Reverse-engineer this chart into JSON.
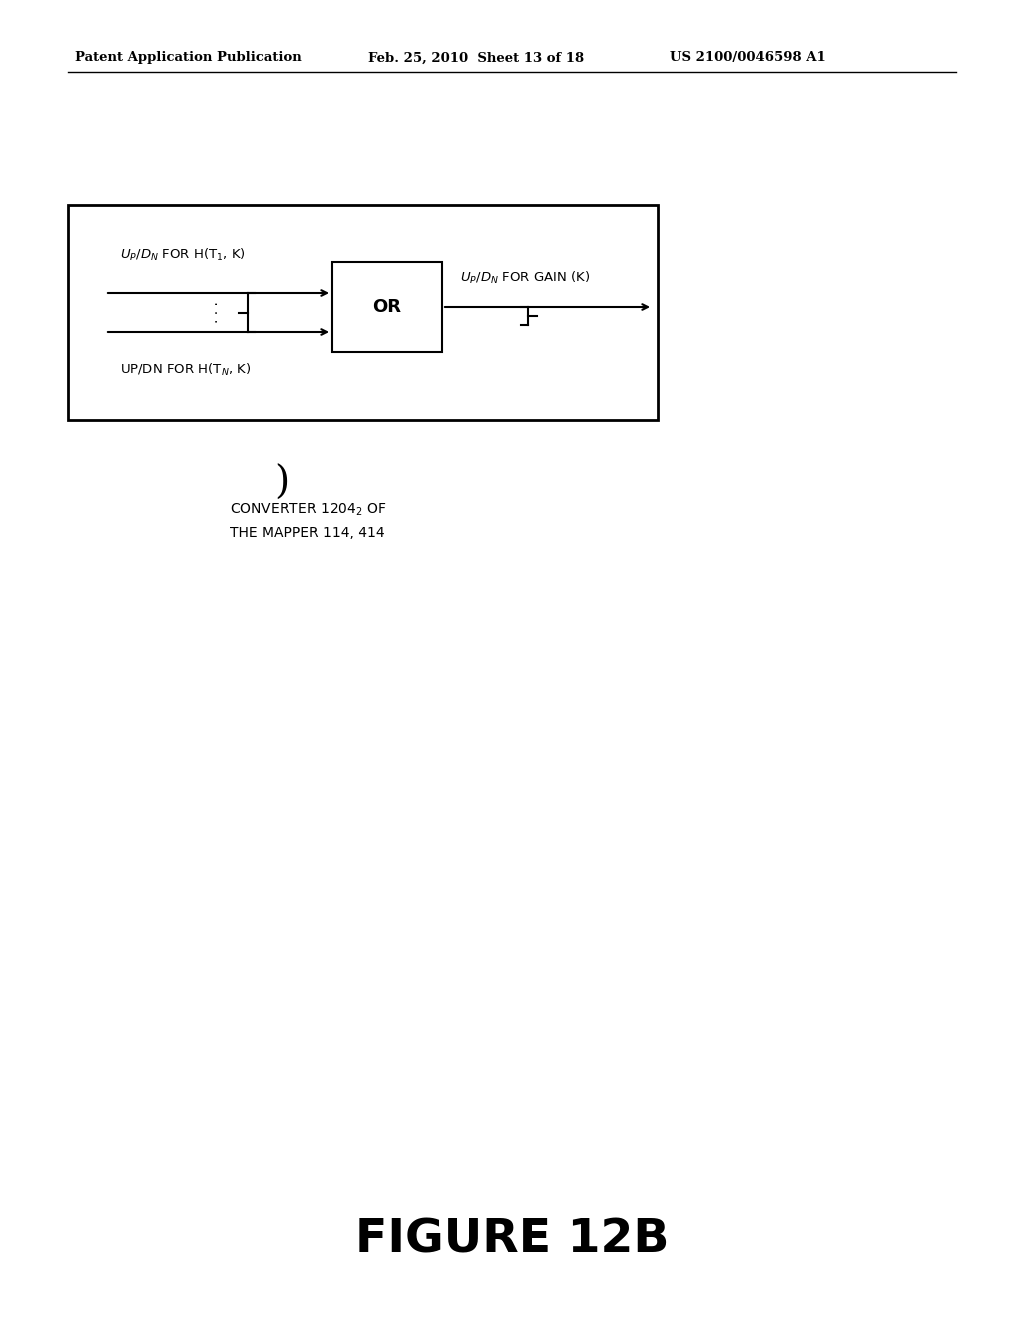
{
  "bg_color": "#ffffff",
  "header_left": "Patent Application Publication",
  "header_mid": "Feb. 25, 2010  Sheet 13 of 18",
  "header_right": "US 2100/0046598 A1",
  "figure_title": "FIGURE 12B"
}
